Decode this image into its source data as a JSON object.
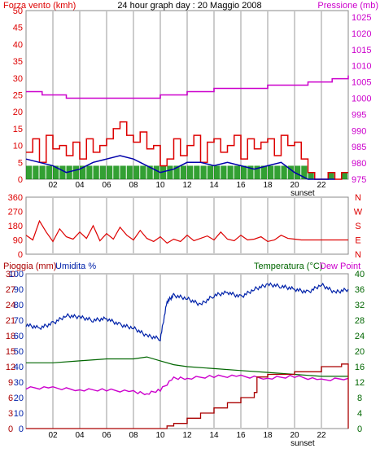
{
  "colors": {
    "wind": "#dd0000",
    "wind_green": "#008800",
    "wind_blue": "#0000aa",
    "pressure": "#cc00cc",
    "humidity": "#0022aa",
    "temperature": "#006600",
    "dew_point": "#cc00cc",
    "rain": "#aa0000",
    "grid": "#cccccc",
    "frame": "#888888"
  },
  "chart_data": [
    {
      "type": "line",
      "title": "24 hour graph day : 20 Maggio 2008",
      "left_label": "Forza vento (kmh)",
      "right_label": "Pressione (mb)",
      "x_ticks": [
        "02",
        "04",
        "06",
        "08",
        "10",
        "12",
        "14",
        "16",
        "18",
        "20",
        "22"
      ],
      "x_range": [
        0,
        24
      ],
      "sunset_label": "sunset",
      "sunset_hour": 20.6,
      "left_ticks": [
        0,
        5,
        10,
        15,
        20,
        25,
        30,
        35,
        40,
        45,
        50
      ],
      "right_ticks": [
        975,
        980,
        985,
        990,
        995,
        1000,
        1005,
        1010,
        1015,
        1020,
        1025
      ],
      "ylim_left": [
        0,
        50
      ],
      "ylim_right": [
        975,
        1027
      ],
      "series": [
        {
          "name": "Forza vento",
          "axis": "left",
          "x": [
            0.0,
            0.5,
            1.0,
            1.5,
            2.0,
            2.5,
            3.0,
            3.5,
            4.0,
            4.5,
            5.0,
            5.5,
            6.0,
            6.5,
            7.0,
            7.5,
            8.0,
            8.5,
            9.0,
            9.5,
            10.0,
            10.5,
            11.0,
            11.5,
            12.0,
            12.5,
            13.0,
            13.5,
            14.0,
            14.5,
            15.0,
            15.5,
            16.0,
            16.5,
            17.0,
            17.5,
            18.0,
            18.5,
            19.0,
            19.5,
            20.0,
            20.5,
            21.0,
            21.5,
            22.0,
            22.5,
            23.0,
            23.5
          ],
          "values": [
            8,
            12,
            5,
            13,
            9,
            10,
            7,
            11,
            6,
            12,
            8,
            10,
            12,
            15,
            17,
            13,
            11,
            14,
            9,
            10,
            4,
            6,
            12,
            7,
            10,
            13,
            5,
            11,
            12,
            8,
            10,
            13,
            6,
            12,
            9,
            11,
            12,
            7,
            13,
            10,
            11,
            6,
            2,
            0,
            0,
            2,
            0,
            2
          ]
        },
        {
          "name": "Raffica media",
          "axis": "left",
          "x": [
            0,
            1,
            2,
            3,
            4,
            5,
            6,
            7,
            8,
            9,
            10,
            11,
            12,
            13,
            14,
            15,
            16,
            17,
            18,
            19,
            20,
            21,
            22,
            23
          ],
          "values": [
            6,
            5,
            4,
            2,
            3,
            5,
            6,
            7,
            6,
            4,
            2,
            3,
            5,
            5,
            4,
            5,
            4,
            3,
            4,
            5,
            2,
            0,
            0,
            0
          ]
        },
        {
          "name": "Pressione",
          "axis": "right",
          "x": [
            0.0,
            0.8,
            1.2,
            2.5,
            3.0,
            5.0,
            9.0,
            10.0,
            10.5,
            12.0,
            14.0,
            18.0,
            21.0,
            22.0,
            22.8,
            23.5,
            24.0
          ],
          "values": [
            1002,
            1002,
            1001,
            1001,
            1000,
            1000,
            1000,
            1001,
            1001,
            1002,
            1003,
            1004,
            1005,
            1005,
            1006,
            1006,
            1007
          ]
        }
      ]
    },
    {
      "type": "line",
      "title": "",
      "y_ticks": [
        0,
        90,
        180,
        270,
        360
      ],
      "compass_labels": [
        "N",
        "W",
        "S",
        "E",
        "N"
      ],
      "ylim": [
        0,
        360
      ],
      "x_range": [
        0,
        24
      ],
      "series": [
        {
          "name": "Direzione vento",
          "x": [
            0.0,
            0.5,
            1.0,
            1.5,
            2.0,
            2.5,
            3.0,
            3.5,
            4.0,
            4.5,
            5.0,
            5.5,
            6.0,
            6.5,
            7.0,
            7.5,
            8.0,
            8.5,
            9.0,
            9.5,
            10.0,
            10.5,
            11.0,
            11.5,
            12.0,
            12.5,
            13.0,
            13.5,
            14.0,
            14.5,
            15.0,
            15.5,
            16.0,
            16.5,
            17.0,
            17.5,
            18.0,
            18.5,
            19.0,
            19.5,
            20.0,
            20.5,
            21.0,
            22.0,
            23.0,
            24.0
          ],
          "values": [
            120,
            90,
            210,
            140,
            80,
            160,
            110,
            95,
            140,
            100,
            180,
            85,
            130,
            95,
            170,
            120,
            90,
            150,
            100,
            80,
            110,
            70,
            95,
            80,
            120,
            85,
            100,
            115,
            90,
            140,
            95,
            85,
            120,
            90,
            95,
            110,
            80,
            90,
            120,
            100,
            95,
            90,
            90,
            90,
            90,
            90
          ]
        }
      ]
    },
    {
      "type": "line",
      "title": "",
      "left_label_rain": "Pioggia (mm)",
      "left_label_hum": "Umidita %",
      "right_label_temp": "Temperatura (°C)",
      "right_label_dew": "Dew Point",
      "x_ticks": [
        "02",
        "04",
        "06",
        "08",
        "10",
        "12",
        "14",
        "16",
        "18",
        "20",
        "22"
      ],
      "x_range": [
        0,
        24
      ],
      "sunset_label": "sunset",
      "sunset_hour": 20.6,
      "left_ticks_rain": [
        0,
        3,
        6,
        9,
        12,
        15,
        18,
        21,
        24,
        27,
        30
      ],
      "left_ticks_hum": [
        0,
        10,
        20,
        30,
        40,
        50,
        60,
        70,
        80,
        90,
        100
      ],
      "right_ticks": [
        0,
        4,
        8,
        12,
        16,
        20,
        24,
        28,
        32,
        36,
        40
      ],
      "ylim_humidity": [
        0,
        100
      ],
      "ylim_rain": [
        0,
        30
      ],
      "ylim_temp": [
        0,
        40
      ],
      "series": [
        {
          "name": "Umidita",
          "axis": "humidity",
          "x": [
            0.0,
            1.0,
            2.0,
            3.0,
            4.0,
            5.0,
            6.0,
            7.0,
            8.0,
            9.0,
            10.0,
            10.5,
            11.0,
            12.0,
            13.0,
            14.0,
            15.0,
            16.0,
            17.0,
            18.0,
            19.0,
            20.0,
            21.0,
            22.0,
            23.0,
            24.0
          ],
          "values": [
            67,
            65,
            68,
            73,
            72,
            70,
            71,
            67,
            65,
            60,
            58,
            82,
            86,
            84,
            80,
            86,
            88,
            85,
            90,
            93,
            92,
            90,
            88,
            93,
            88,
            90
          ]
        },
        {
          "name": "Temperatura",
          "axis": "temp",
          "x": [
            0,
            2,
            4,
            6,
            8,
            9,
            10,
            11,
            12,
            14,
            16,
            18,
            20,
            22,
            24
          ],
          "values": [
            17,
            17,
            17.5,
            18,
            18,
            18.5,
            17.5,
            16.5,
            16,
            15.5,
            15,
            14.5,
            14,
            13.5,
            13.5
          ]
        },
        {
          "name": "Dew Point",
          "axis": "temp",
          "x": [
            0,
            2,
            4,
            6,
            8,
            9,
            10,
            11,
            12,
            14,
            16,
            18,
            20,
            22,
            24
          ],
          "values": [
            10.5,
            10.5,
            10,
            10,
            9.5,
            9,
            10,
            13,
            13,
            13.5,
            13.5,
            13,
            13.5,
            12.5,
            13
          ]
        },
        {
          "name": "Pioggia",
          "axis": "rain",
          "x": [
            0,
            9.5,
            10.5,
            11.0,
            12.0,
            13.0,
            14.0,
            15.0,
            16.0,
            17.0,
            17.2,
            18.0,
            20.0,
            22.0,
            23.5
          ],
          "values": [
            0,
            0,
            0.5,
            1,
            2,
            3,
            4,
            5,
            6,
            7,
            10,
            10.5,
            11,
            12,
            12.5
          ]
        }
      ]
    }
  ]
}
